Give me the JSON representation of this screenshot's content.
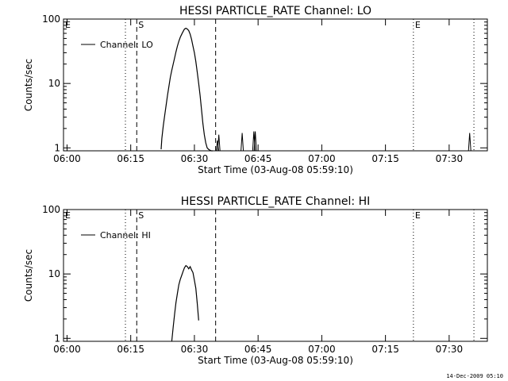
{
  "footer": {
    "stamp": "14-Dec-2009 05:10"
  },
  "chart_data": [
    {
      "type": "line",
      "title": "HESSI PARTICLE_RATE Channel: LO",
      "xlabel": "Start Time (03-Aug-08 05:59:10)",
      "ylabel": "Counts/sec",
      "y_scale": "log",
      "ylim": [
        0.9,
        100
      ],
      "xlim": [
        "05:59:10",
        "07:39:00"
      ],
      "x_ticks": [
        "06:00",
        "06:15",
        "06:30",
        "06:45",
        "07:00",
        "07:15",
        "07:30"
      ],
      "y_ticks": [
        "1",
        "10",
        "100"
      ],
      "legend": {
        "placement": "top-left",
        "entries": [
          "Channel: LO"
        ]
      },
      "series": [
        {
          "name": "Channel: LO",
          "x": [
            "06:22:10",
            "06:22:20",
            "06:22:40",
            "06:23:00",
            "06:23:20",
            "06:23:40",
            "06:24:00",
            "06:24:20",
            "06:24:40",
            "06:25:00",
            "06:25:20",
            "06:25:40",
            "06:26:00",
            "06:26:20",
            "06:26:40",
            "06:27:00",
            "06:27:20",
            "06:27:40",
            "06:28:00",
            "06:28:20",
            "06:28:40",
            "06:29:00",
            "06:29:20",
            "06:29:40",
            "06:30:00",
            "06:30:20",
            "06:30:40",
            "06:31:00",
            "06:31:20",
            "06:31:40",
            "06:32:00",
            "06:32:20",
            "06:32:40",
            "06:33:00",
            "06:33:20",
            "06:33:40",
            "06:34:00",
            "06:34:20"
          ],
          "y": [
            0.95,
            1.4,
            2.2,
            3.2,
            4.6,
            6.5,
            9.0,
            12.5,
            16,
            20,
            25,
            31,
            38,
            45,
            52,
            58,
            64,
            70,
            72,
            70,
            66,
            58,
            48,
            38,
            30,
            22,
            15,
            10,
            6.5,
            4.0,
            2.4,
            1.6,
            1.2,
            1.0,
            0.95,
            0.92,
            0.9,
            0.9
          ]
        }
      ],
      "spikes": [
        {
          "x": "06:35:25",
          "y": 1.3
        },
        {
          "x": "06:35:45",
          "y": 1.6
        },
        {
          "x": "06:41:15",
          "y": 1.7
        },
        {
          "x": "06:44:00",
          "y": 1.8
        },
        {
          "x": "06:44:20",
          "y": 1.8
        },
        {
          "x": "07:34:50",
          "y": 1.7
        }
      ],
      "markers": [
        {
          "x": "06:13:45",
          "style": "dotted"
        },
        {
          "x": "06:16:25",
          "style": "dashed",
          "label": "S"
        },
        {
          "x": "06:35:00",
          "style": "dashed"
        },
        {
          "x": "07:21:35",
          "style": "dotted",
          "label": "E"
        },
        {
          "x": "07:35:50",
          "style": "dotted"
        }
      ],
      "corner_label": "E",
      "grid": false,
      "colors": {
        "line": "#000000",
        "background": "#ffffff"
      }
    },
    {
      "type": "line",
      "title": "HESSI PARTICLE_RATE Channel: HI",
      "xlabel": "Start Time (03-Aug-08 05:59:10)",
      "ylabel": "Counts/sec",
      "y_scale": "log",
      "ylim": [
        0.9,
        100
      ],
      "xlim": [
        "05:59:10",
        "07:39:00"
      ],
      "x_ticks": [
        "06:00",
        "06:15",
        "06:30",
        "06:45",
        "07:00",
        "07:15",
        "07:30"
      ],
      "y_ticks": [
        "1",
        "10",
        "100"
      ],
      "legend": {
        "placement": "top-left",
        "entries": [
          "Channel: HI"
        ]
      },
      "series": [
        {
          "name": "Channel: HI",
          "x": [
            "06:24:40",
            "06:25:00",
            "06:25:20",
            "06:25:40",
            "06:26:00",
            "06:26:20",
            "06:26:40",
            "06:27:00",
            "06:27:20",
            "06:27:40",
            "06:28:00",
            "06:28:20",
            "06:28:40",
            "06:29:00",
            "06:29:20",
            "06:29:40",
            "06:30:00",
            "06:30:20",
            "06:30:40",
            "06:31:00"
          ],
          "y": [
            0.9,
            1.5,
            2.4,
            3.6,
            5.0,
            6.8,
            8.2,
            9.5,
            11,
            12.5,
            13.5,
            13,
            12,
            13,
            11.5,
            10.5,
            8,
            6,
            3.5,
            1.9
          ]
        }
      ],
      "markers": [
        {
          "x": "06:13:45",
          "style": "dotted"
        },
        {
          "x": "06:16:25",
          "style": "dashed",
          "label": "S"
        },
        {
          "x": "06:35:00",
          "style": "dashed"
        },
        {
          "x": "07:21:35",
          "style": "dotted",
          "label": "E"
        },
        {
          "x": "07:35:50",
          "style": "dotted"
        }
      ],
      "corner_label": "E",
      "grid": false,
      "colors": {
        "line": "#000000",
        "background": "#ffffff"
      }
    }
  ]
}
